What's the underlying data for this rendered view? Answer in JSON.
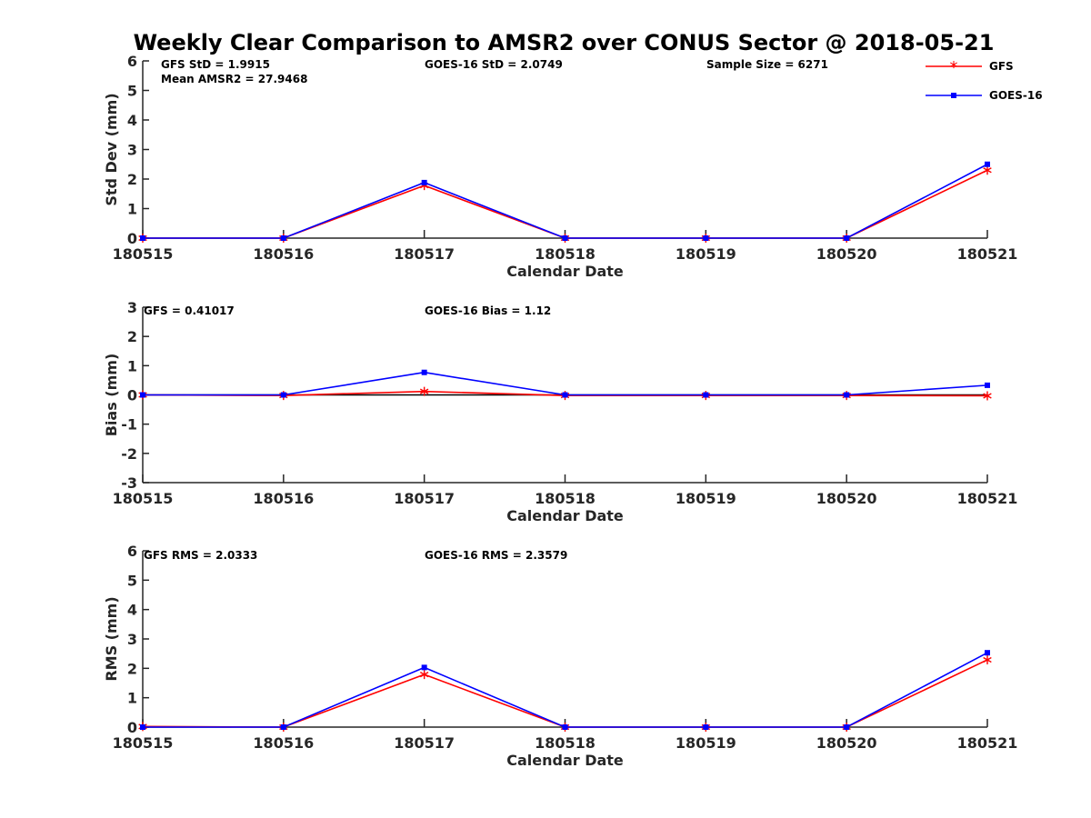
{
  "figure": {
    "title": "Weekly Clear Comparison to AMSR2 over CONUS Sector @ 2018-05-21"
  },
  "legend": {
    "placement": "top-right",
    "entries": [
      {
        "name": "GFS",
        "color": "#ff0000",
        "marker": "asterisk"
      },
      {
        "name": "GOES-16",
        "color": "#0000ff",
        "marker": "square"
      }
    ]
  },
  "chart_data": [
    {
      "type": "line",
      "xlabel": "Calendar Date",
      "ylabel": "Std Dev (mm)",
      "ylim": [
        0,
        6
      ],
      "yticks": [
        "0",
        "1",
        "2",
        "3",
        "4",
        "5",
        "6"
      ],
      "categories": [
        "180515",
        "180516",
        "180517",
        "180518",
        "180519",
        "180520",
        "180521"
      ],
      "series": [
        {
          "name": "GFS",
          "color": "#ff0000",
          "values": [
            0,
            0,
            1.78,
            0,
            0,
            0,
            2.3
          ]
        },
        {
          "name": "GOES-16",
          "color": "#0000ff",
          "values": [
            0,
            0,
            1.88,
            0,
            0,
            0,
            2.5
          ]
        }
      ],
      "annotations": [
        "GFS StD = 1.9915",
        "Mean AMSR2 = 27.9468",
        "GOES-16 StD = 2.0749",
        "Sample Size = 6271"
      ]
    },
    {
      "type": "line",
      "xlabel": "Calendar Date",
      "ylabel": "Bias (mm)",
      "ylim": [
        -3,
        3
      ],
      "yticks": [
        "-3",
        "-2",
        "-1",
        "0",
        "1",
        "2",
        "3"
      ],
      "zero_line": true,
      "categories": [
        "180515",
        "180516",
        "180517",
        "180518",
        "180519",
        "180520",
        "180521"
      ],
      "series": [
        {
          "name": "GFS",
          "color": "#ff0000",
          "values": [
            0,
            -0.02,
            0.12,
            -0.02,
            -0.02,
            -0.02,
            -0.03
          ]
        },
        {
          "name": "GOES-16",
          "color": "#0000ff",
          "values": [
            0,
            0,
            0.77,
            0,
            0,
            0,
            0.33
          ]
        }
      ],
      "annotations": [
        "GFS = 0.41017",
        "GOES-16 Bias  = 1.12"
      ]
    },
    {
      "type": "line",
      "xlabel": "Calendar Date",
      "ylabel": "RMS (mm)",
      "ylim": [
        0,
        6
      ],
      "yticks": [
        "0",
        "1",
        "2",
        "3",
        "4",
        "5",
        "6"
      ],
      "categories": [
        "180515",
        "180516",
        "180517",
        "180518",
        "180519",
        "180520",
        "180521"
      ],
      "series": [
        {
          "name": "GFS",
          "color": "#ff0000",
          "values": [
            0.02,
            0,
            1.79,
            0,
            0,
            0,
            2.29
          ]
        },
        {
          "name": "GOES-16",
          "color": "#0000ff",
          "values": [
            0,
            0,
            2.03,
            0,
            0,
            0,
            2.53
          ]
        }
      ],
      "annotations": [
        "GFS RMS = 2.0333",
        "GOES-16 RMS = 2.3579"
      ]
    }
  ]
}
